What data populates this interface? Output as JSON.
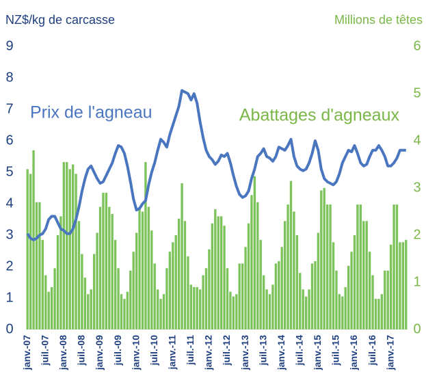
{
  "chart_data": {
    "type": "bar",
    "y_label": "NZ$/kg de carcasse",
    "y2_label": "Millions de têtes",
    "categories": [
      "janv.-07",
      null,
      null,
      null,
      null,
      null,
      "juil.-07",
      null,
      null,
      null,
      null,
      null,
      "janv.-08",
      null,
      null,
      null,
      null,
      null,
      "juil.-08",
      null,
      null,
      null,
      null,
      null,
      "janv.-09",
      null,
      null,
      null,
      null,
      null,
      "juil.-09",
      null,
      null,
      null,
      null,
      null,
      "janv.-10",
      null,
      null,
      null,
      null,
      null,
      "juil.-10",
      null,
      null,
      null,
      null,
      null,
      "janv.-11",
      null,
      null,
      null,
      null,
      null,
      "juil.-11",
      null,
      null,
      null,
      null,
      null,
      "janv.-12",
      null,
      null,
      null,
      null,
      null,
      "juil.-12",
      null,
      null,
      null,
      null,
      null,
      "janv.-13",
      null,
      null,
      null,
      null,
      null,
      "juil.-13",
      null,
      null,
      null,
      null,
      null,
      "janv.-14",
      null,
      null,
      null,
      null,
      null,
      "juil.-14",
      null,
      null,
      null,
      null,
      null,
      "janv.-15",
      null,
      null,
      null,
      null,
      null,
      "juil.-15",
      null,
      null,
      null,
      null,
      null,
      "janv.-16",
      null,
      null,
      null,
      null,
      null,
      "juil.-16",
      null,
      null,
      null,
      null,
      null,
      "janv.-17",
      null,
      null,
      null,
      null,
      null
    ],
    "series": [
      {
        "name": "Abattages d'agneaux",
        "type": "bar",
        "axis": "y2",
        "color": "#7dc35b",
        "values": [
          3.4,
          3.3,
          3.8,
          2.7,
          2.7,
          1.9,
          1.15,
          0.8,
          0.9,
          1.3,
          2.0,
          2.4,
          3.55,
          3.55,
          3.4,
          3.5,
          3.3,
          2.3,
          1.6,
          1.1,
          0.75,
          0.85,
          1.6,
          2.05,
          2.6,
          2.9,
          2.9,
          2.6,
          2.45,
          1.9,
          1.3,
          0.75,
          0.65,
          0.8,
          1.25,
          1.65,
          2.05,
          2.55,
          2.5,
          3.55,
          2.6,
          2.1,
          1.4,
          0.85,
          0.65,
          0.75,
          1.3,
          1.65,
          1.85,
          2.0,
          2.35,
          3.1,
          2.3,
          1.55,
          0.95,
          0.9,
          0.9,
          0.85,
          1.15,
          1.3,
          1.7,
          2.25,
          2.55,
          2.4,
          2.4,
          2.2,
          1.3,
          0.8,
          0.7,
          0.75,
          1.4,
          1.4,
          1.75,
          2.25,
          2.85,
          3.25,
          2.7,
          1.9,
          1.15,
          0.85,
          0.75,
          0.95,
          1.4,
          1.45,
          1.75,
          2.3,
          2.65,
          3.15,
          2.5,
          2.0,
          1.2,
          0.85,
          0.7,
          0.85,
          1.4,
          1.45,
          2.05,
          2.95,
          3.0,
          2.65,
          2.65,
          1.85,
          1.25,
          0.75,
          0.7,
          0.9,
          1.35,
          1.65,
          2.0,
          2.65,
          2.65,
          2.3,
          2.3,
          1.65,
          1.15,
          0.65,
          0.65,
          0.75,
          1.25,
          1.25,
          1.8,
          2.65,
          2.65,
          1.85,
          1.85,
          1.9
        ]
      },
      {
        "name": "Prix de l'agneau",
        "type": "line",
        "axis": "y",
        "color": "#4a76c0",
        "values": [
          3.05,
          2.9,
          2.85,
          2.9,
          3.0,
          3.05,
          3.2,
          3.5,
          3.6,
          3.6,
          3.4,
          3.2,
          3.15,
          3.05,
          3.05,
          3.2,
          3.5,
          3.9,
          4.4,
          4.8,
          5.1,
          5.2,
          5.0,
          4.8,
          4.65,
          4.7,
          4.9,
          5.1,
          5.3,
          5.6,
          5.85,
          5.8,
          5.6,
          5.2,
          4.7,
          4.15,
          3.8,
          3.85,
          4.0,
          4.1,
          4.6,
          5.0,
          5.3,
          5.7,
          6.05,
          5.95,
          5.8,
          6.2,
          6.5,
          6.8,
          7.1,
          7.6,
          7.55,
          7.5,
          7.3,
          7.5,
          7.2,
          6.6,
          6.1,
          5.7,
          5.5,
          5.4,
          5.25,
          5.35,
          5.55,
          5.5,
          5.6,
          5.3,
          4.9,
          4.55,
          4.3,
          4.2,
          4.25,
          4.4,
          4.8,
          5.1,
          5.5,
          5.6,
          5.75,
          5.5,
          5.45,
          5.35,
          5.5,
          5.8,
          5.75,
          5.7,
          5.85,
          6.05,
          5.5,
          5.2,
          5.1,
          5.05,
          5.1,
          5.3,
          5.6,
          6.0,
          5.7,
          5.1,
          4.8,
          4.7,
          4.65,
          4.6,
          4.7,
          4.95,
          5.3,
          5.5,
          5.7,
          5.65,
          5.85,
          5.6,
          5.3,
          5.2,
          5.25,
          5.5,
          5.7,
          5.7,
          5.85,
          5.7,
          5.5,
          5.2,
          5.2,
          5.3,
          5.45,
          5.7,
          5.7,
          5.7
        ]
      }
    ],
    "ylim": [
      0,
      9
    ],
    "yticks": [
      0,
      1,
      2,
      3,
      4,
      5,
      6,
      7,
      8,
      9
    ],
    "y2lim": [
      0,
      6
    ],
    "y2ticks": [
      0,
      1,
      2,
      3,
      4,
      5,
      6
    ],
    "grid": false
  }
}
